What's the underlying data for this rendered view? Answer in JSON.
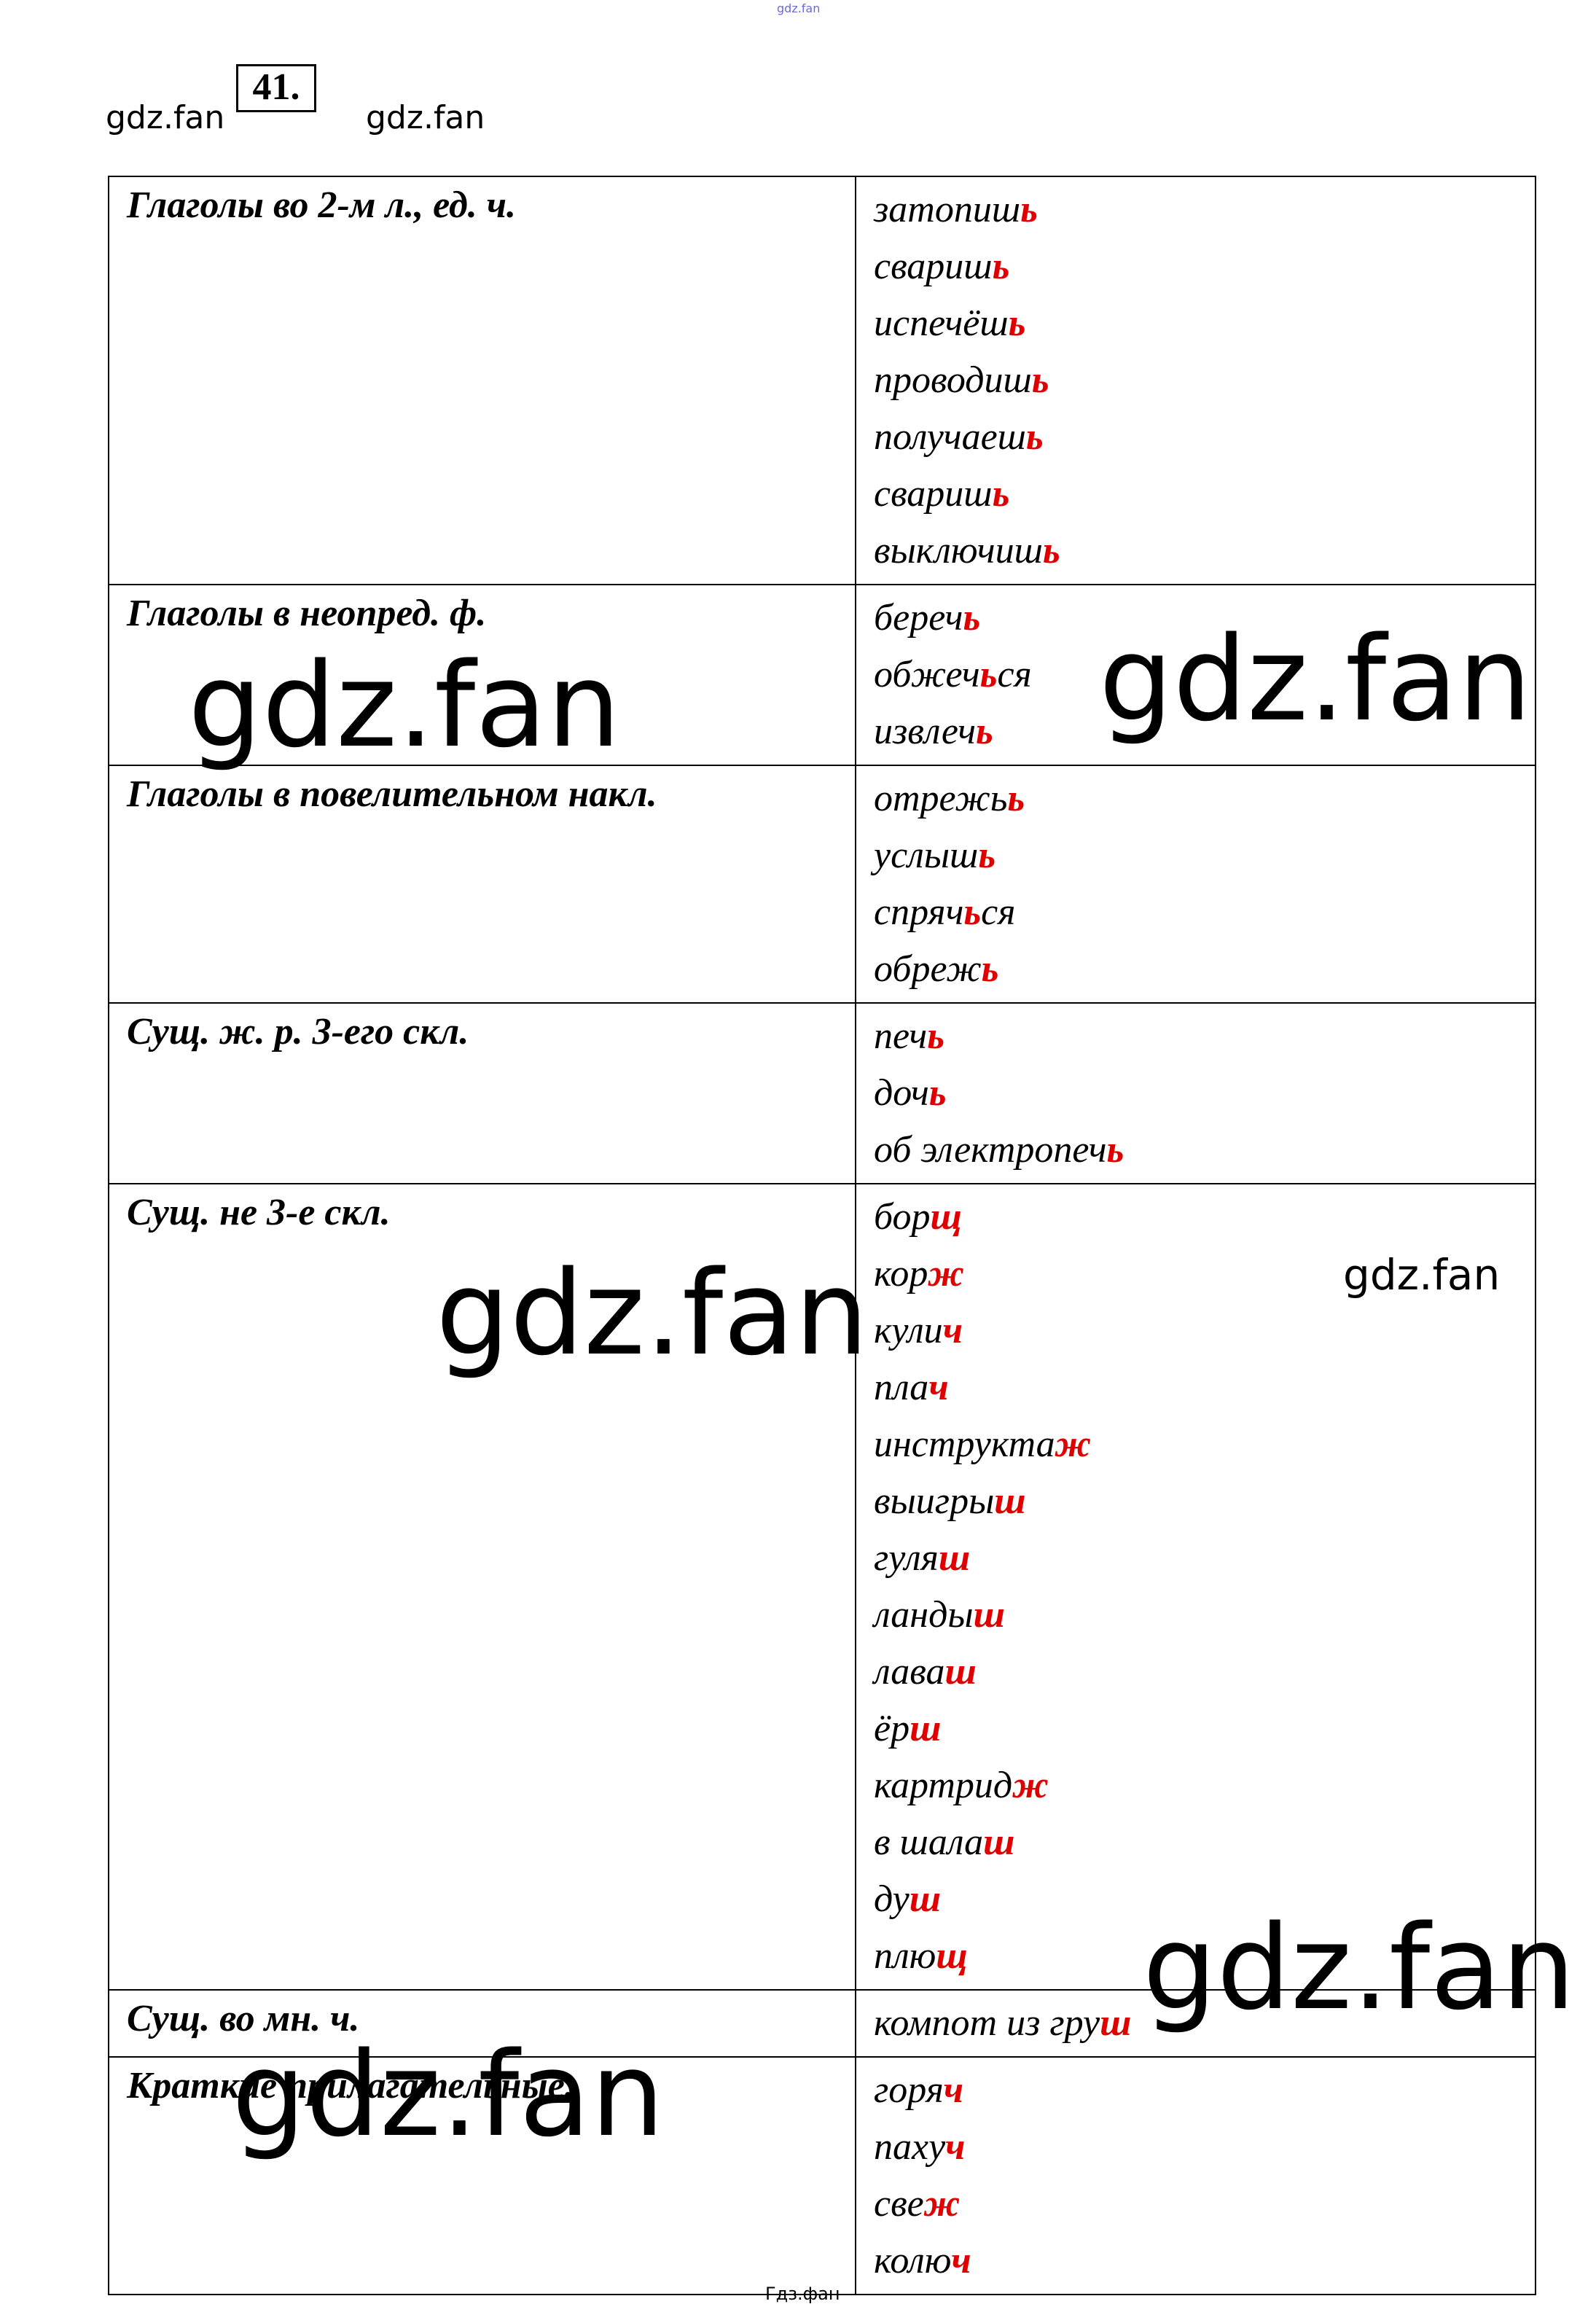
{
  "top_mark": "gdz.fan",
  "exercise_number": "41.",
  "watermarks": {
    "small_left": "gdz.fan",
    "small_right": "gdz.fan",
    "big": "gdz.fan",
    "small_mid": "gdz.fan"
  },
  "footer": "Гдз.фан",
  "colors": {
    "accent": "#e00000"
  },
  "rows": [
    {
      "category": "Глаголы во 2-м л., ед. ч.",
      "words": [
        {
          "stem": "затопиш",
          "end": "ь",
          "after": ""
        },
        {
          "stem": "свариш",
          "end": "ь",
          "after": ""
        },
        {
          "stem": "испечёш",
          "end": "ь",
          "after": ""
        },
        {
          "stem": "проводиш",
          "end": "ь",
          "after": ""
        },
        {
          "stem": "получаеш",
          "end": "ь",
          "after": ""
        },
        {
          "stem": "свариш",
          "end": "ь",
          "after": ""
        },
        {
          "stem": "выключиш",
          "end": "ь",
          "after": ""
        }
      ]
    },
    {
      "category": "Глаголы в неопред. ф.",
      "words": [
        {
          "stem": "береч",
          "end": "ь",
          "after": ""
        },
        {
          "stem": "обжеч",
          "end": "ь",
          "after": "ся"
        },
        {
          "stem": "извлеч",
          "end": "ь",
          "after": ""
        }
      ]
    },
    {
      "category": "Глаголы в повелительном накл.",
      "words": [
        {
          "stem": "отрежь",
          "end": "ь",
          "after": ""
        },
        {
          "stem": "услыш",
          "end": "ь",
          "after": ""
        },
        {
          "stem": "спряч",
          "end": "ь",
          "after": "ся"
        },
        {
          "stem": "обреж",
          "end": "ь",
          "after": ""
        }
      ]
    },
    {
      "category": "Сущ. ж. р. 3-его скл.",
      "words": [
        {
          "stem": "печ",
          "end": "ь",
          "after": ""
        },
        {
          "stem": "доч",
          "end": "ь",
          "after": ""
        },
        {
          "stem": "об электропеч",
          "end": "ь",
          "after": ""
        }
      ]
    },
    {
      "category": "Сущ. не 3-е скл.",
      "words": [
        {
          "stem": "бор",
          "end": "щ",
          "after": ""
        },
        {
          "stem": "кор",
          "end": "ж",
          "after": ""
        },
        {
          "stem": "кули",
          "end": "ч",
          "after": ""
        },
        {
          "stem": "пла",
          "end": "ч",
          "after": ""
        },
        {
          "stem": "инструкта",
          "end": "ж",
          "after": ""
        },
        {
          "stem": "выигры",
          "end": "ш",
          "after": ""
        },
        {
          "stem": "гуля",
          "end": "ш",
          "after": ""
        },
        {
          "stem": "ланды",
          "end": "ш",
          "after": ""
        },
        {
          "stem": "лава",
          "end": "ш",
          "after": ""
        },
        {
          "stem": "ёр",
          "end": "ш",
          "after": ""
        },
        {
          "stem": "картрид",
          "end": "ж",
          "after": ""
        },
        {
          "stem": "в шала",
          "end": "ш",
          "after": ""
        },
        {
          "stem": "ду",
          "end": "ш",
          "after": ""
        },
        {
          "stem": "плю",
          "end": "щ",
          "after": ""
        }
      ]
    },
    {
      "category": "Сущ. во мн. ч.",
      "words": [
        {
          "stem": "компот из гру",
          "end": "ш",
          "after": ""
        }
      ]
    },
    {
      "category": "Краткие прилагательные.",
      "words": [
        {
          "stem": "горя",
          "end": "ч",
          "after": ""
        },
        {
          "stem": "паху",
          "end": "ч",
          "after": ""
        },
        {
          "stem": "све",
          "end": "ж",
          "after": ""
        },
        {
          "stem": "колю",
          "end": "ч",
          "after": ""
        }
      ]
    }
  ]
}
